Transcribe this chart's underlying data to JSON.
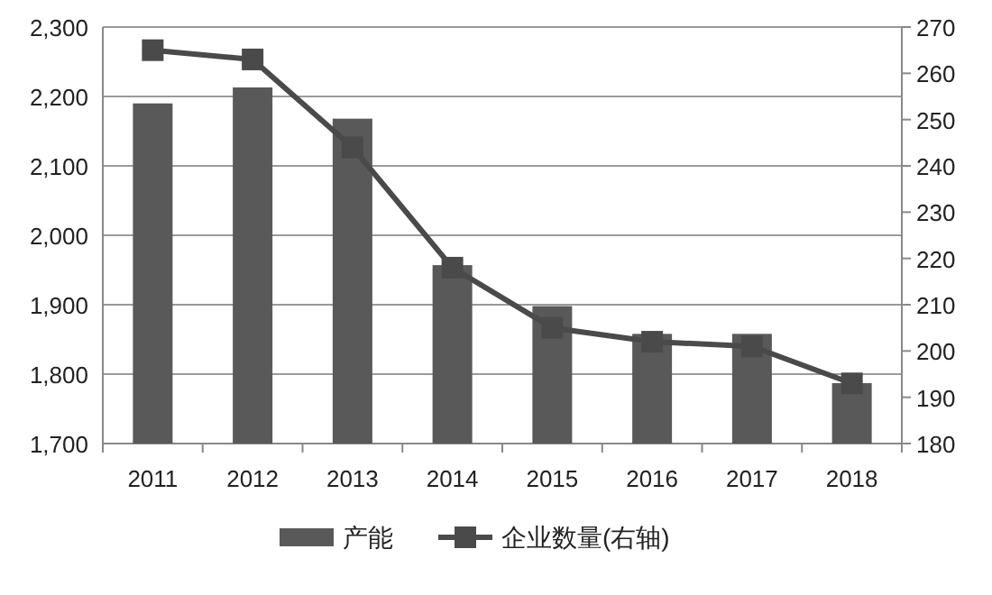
{
  "chart_data": {
    "type": "bar",
    "categories": [
      "2011",
      "2012",
      "2013",
      "2014",
      "2015",
      "2016",
      "2017",
      "2018"
    ],
    "series": [
      {
        "name": "产能",
        "color": "#595959",
        "values": [
          2190,
          2213,
          2168,
          1957,
          1898,
          1858,
          1858,
          1787
        ]
      },
      {
        "name": "企业数量(右轴)",
        "type": "line",
        "axis": "y2",
        "color": "#4a4a4a",
        "marker": "square",
        "values": [
          265,
          263,
          244,
          218,
          205,
          202,
          201,
          193
        ]
      }
    ],
    "ylim": [
      1700,
      2300
    ],
    "yticks": [
      {
        "value": 1700,
        "label": "1,700"
      },
      {
        "value": 1800,
        "label": "1,800"
      },
      {
        "value": 1900,
        "label": "1,900"
      },
      {
        "value": 2000,
        "label": "2,000"
      },
      {
        "value": 2100,
        "label": "2,100"
      },
      {
        "value": 2200,
        "label": "2,200"
      },
      {
        "value": 2300,
        "label": "2,300"
      }
    ],
    "y2lim": [
      180,
      270
    ],
    "y2ticks": [
      180,
      190,
      200,
      210,
      220,
      230,
      240,
      250,
      260,
      270
    ],
    "grid": "y",
    "legend": "bottom"
  }
}
